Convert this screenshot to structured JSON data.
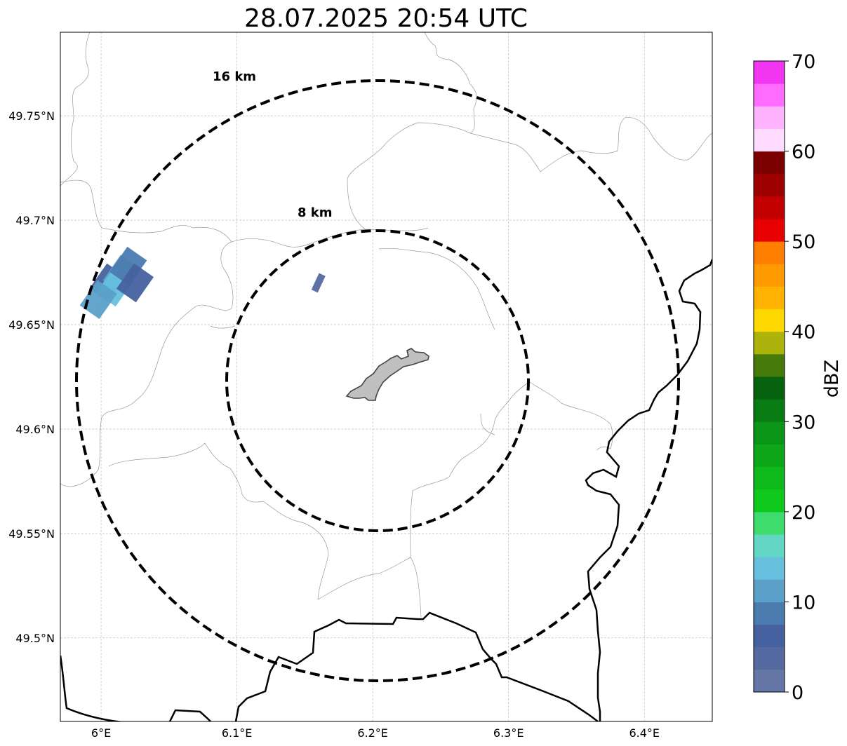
{
  "title": "28.07.2025 20:54 UTC",
  "axes": {
    "x_ticks": [
      {
        "value": 6.0,
        "label": "6°E"
      },
      {
        "value": 6.1,
        "label": "6.1°E"
      },
      {
        "value": 6.2,
        "label": "6.2°E"
      },
      {
        "value": 6.3,
        "label": "6.3°E"
      },
      {
        "value": 6.4,
        "label": "6.4°E"
      }
    ],
    "y_ticks": [
      {
        "value": 49.75,
        "label": "49.75°N"
      },
      {
        "value": 49.7,
        "label": "49.7°N"
      },
      {
        "value": 49.65,
        "label": "49.65°N"
      },
      {
        "value": 49.6,
        "label": "49.6°N"
      },
      {
        "value": 49.55,
        "label": "49.55°N"
      },
      {
        "value": 49.5,
        "label": "49.5°N"
      }
    ],
    "x_range": [
      5.97,
      6.45
    ],
    "y_range": [
      49.46,
      49.79
    ],
    "grid": true
  },
  "center": {
    "lon": 6.203,
    "lat": 49.623
  },
  "rings": [
    {
      "label": "8 km",
      "radius_km": 8
    },
    {
      "label": "16 km",
      "radius_km": 16
    }
  ],
  "colorbar": {
    "label": "dBZ",
    "min": 0,
    "max": 70,
    "step": 2.5,
    "ticks": [
      {
        "value": 0,
        "label": "0"
      },
      {
        "value": 10,
        "label": "10"
      },
      {
        "value": 20,
        "label": "20"
      },
      {
        "value": 30,
        "label": "30"
      },
      {
        "value": 40,
        "label": "40"
      },
      {
        "value": 50,
        "label": "50"
      },
      {
        "value": 60,
        "label": "60"
      },
      {
        "value": 70,
        "label": "70"
      }
    ],
    "colors": [
      "#6577a6",
      "#556aa1",
      "#4661a0",
      "#4c7bb0",
      "#5ba0c8",
      "#66c0dd",
      "#63d6c4",
      "#3ddc6c",
      "#10c91d",
      "#0eb91b",
      "#0ea619",
      "#0c9618",
      "#087c12",
      "#06620e",
      "#467a0b",
      "#acb30b",
      "#ffd800",
      "#ffb300",
      "#ff9a00",
      "#ff7e00",
      "#e60000",
      "#c20000",
      "#9e0000",
      "#7d0000",
      "#ffdcff",
      "#ffb3ff",
      "#ff6cff",
      "#f036f0"
    ]
  },
  "echoes": [
    {
      "lon": 6.005,
      "lat": 49.67,
      "dbz": 7
    },
    {
      "lon": 6.015,
      "lat": 49.674,
      "dbz": 12
    },
    {
      "lon": 6.01,
      "lat": 49.668,
      "dbz": 14
    },
    {
      "lon": 6.02,
      "lat": 49.678,
      "dbz": 9
    },
    {
      "lon": 6.025,
      "lat": 49.67,
      "dbz": 6
    },
    {
      "lon": 5.998,
      "lat": 49.662,
      "dbz": 10
    },
    {
      "lon": 6.16,
      "lat": 49.67,
      "dbz": 3
    }
  ],
  "colors": {
    "city_fill": "#c0c0c0",
    "city_stroke": "#444444",
    "border": "#000000",
    "admin": "#999999",
    "grid": "#b5b5b5",
    "ring": "#000000"
  }
}
